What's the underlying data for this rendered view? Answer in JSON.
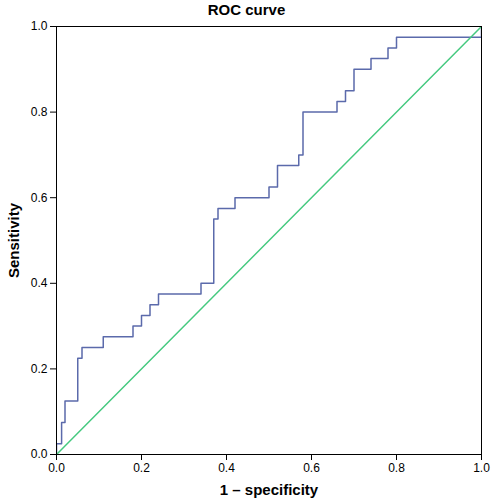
{
  "chart_data": {
    "type": "line",
    "title": "ROC curve",
    "x_label": "1 – specificity",
    "y_label": "Sensitivity",
    "xlim": [
      0,
      1
    ],
    "ylim": [
      0,
      1
    ],
    "xticks": [
      {
        "value": 0,
        "label": "0.0"
      },
      0.2,
      0.4,
      0.6,
      0.8,
      {
        "value": 1,
        "label": "1.0"
      }
    ],
    "yticks": [
      {
        "value": 0,
        "label": "0.0"
      },
      0.2,
      0.4,
      0.6,
      0.8,
      {
        "value": 1,
        "label": "1.0"
      }
    ],
    "grid": false,
    "series": [
      {
        "color": "#5b6aab",
        "x": [
          0,
          0,
          0.012,
          0.012,
          0.02,
          0.02,
          0.05,
          0.05,
          0.06,
          0.06,
          0.11,
          0.11,
          0.18,
          0.18,
          0.2,
          0.2,
          0.22,
          0.22,
          0.24,
          0.24,
          0.34,
          0.34,
          0.37,
          0.37,
          0.38,
          0.38,
          0.42,
          0.42,
          0.5,
          0.5,
          0.52,
          0.52,
          0.57,
          0.57,
          0.58,
          0.58,
          0.66,
          0.66,
          0.68,
          0.68,
          0.7,
          0.7,
          0.74,
          0.74,
          0.78,
          0.78,
          0.8,
          0.8,
          1.0,
          1.0
        ],
        "values": [
          0,
          0.025,
          0.025,
          0.075,
          0.075,
          0.125,
          0.125,
          0.225,
          0.225,
          0.25,
          0.25,
          0.275,
          0.275,
          0.3,
          0.3,
          0.325,
          0.325,
          0.35,
          0.35,
          0.375,
          0.375,
          0.4,
          0.4,
          0.55,
          0.55,
          0.575,
          0.575,
          0.6,
          0.6,
          0.625,
          0.625,
          0.675,
          0.675,
          0.7,
          0.7,
          0.8,
          0.8,
          0.825,
          0.825,
          0.85,
          0.85,
          0.9,
          0.9,
          0.925,
          0.925,
          0.95,
          0.95,
          0.975,
          0.975,
          1.0
        ]
      },
      {
        "color": "#45c97f",
        "x": [
          0,
          1
        ],
        "values": [
          0,
          1
        ]
      }
    ]
  }
}
